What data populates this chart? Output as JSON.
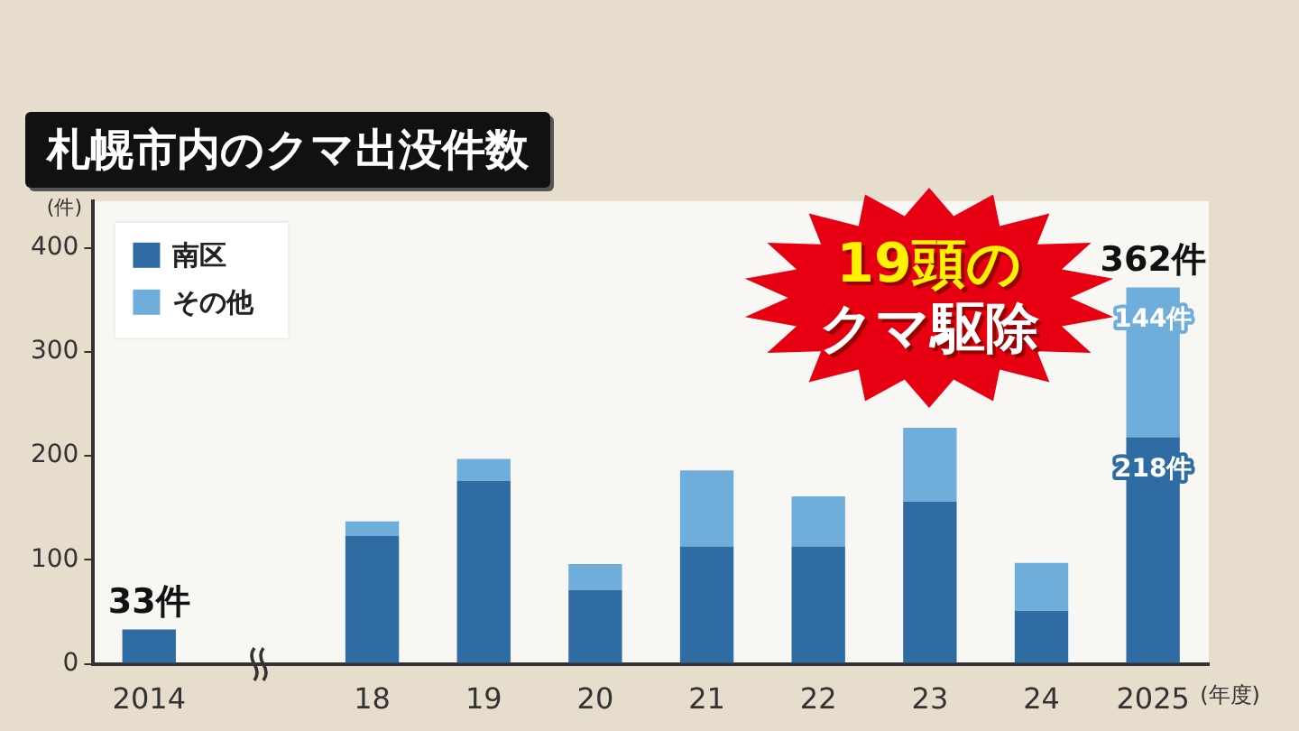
{
  "chart_data": {
    "type": "bar",
    "title": "札幌市内のクマ出没件数",
    "ylabel": "(件)",
    "xlabel": "(年度)",
    "annotations": [
      "19頭の",
      "クマ駆除"
    ],
    "categories": [
      "2014",
      null,
      "18",
      "19",
      "20",
      "21",
      "22",
      "23",
      "24",
      "2025"
    ],
    "stacked": true,
    "series": [
      {
        "name": "南区",
        "color": "#2f6ca3",
        "values": [
          33,
          null,
          123,
          176,
          71,
          113,
          113,
          156,
          51,
          218
        ],
        "value_labels": [
          null,
          null,
          null,
          null,
          null,
          null,
          null,
          null,
          null,
          "218件"
        ]
      },
      {
        "name": "その他",
        "color": "#6faedb",
        "values": [
          null,
          null,
          14,
          21,
          25,
          73,
          48,
          71,
          46,
          144
        ],
        "value_labels": [
          null,
          null,
          null,
          null,
          null,
          null,
          null,
          null,
          null,
          "144件"
        ]
      }
    ],
    "totals": [
      "33件",
      null,
      null,
      null,
      null,
      null,
      null,
      null,
      null,
      "362件"
    ],
    "ylim": [
      0,
      445
    ],
    "yticks": [
      0,
      100,
      200,
      300,
      400
    ],
    "legend": "top left",
    "grid": false
  }
}
